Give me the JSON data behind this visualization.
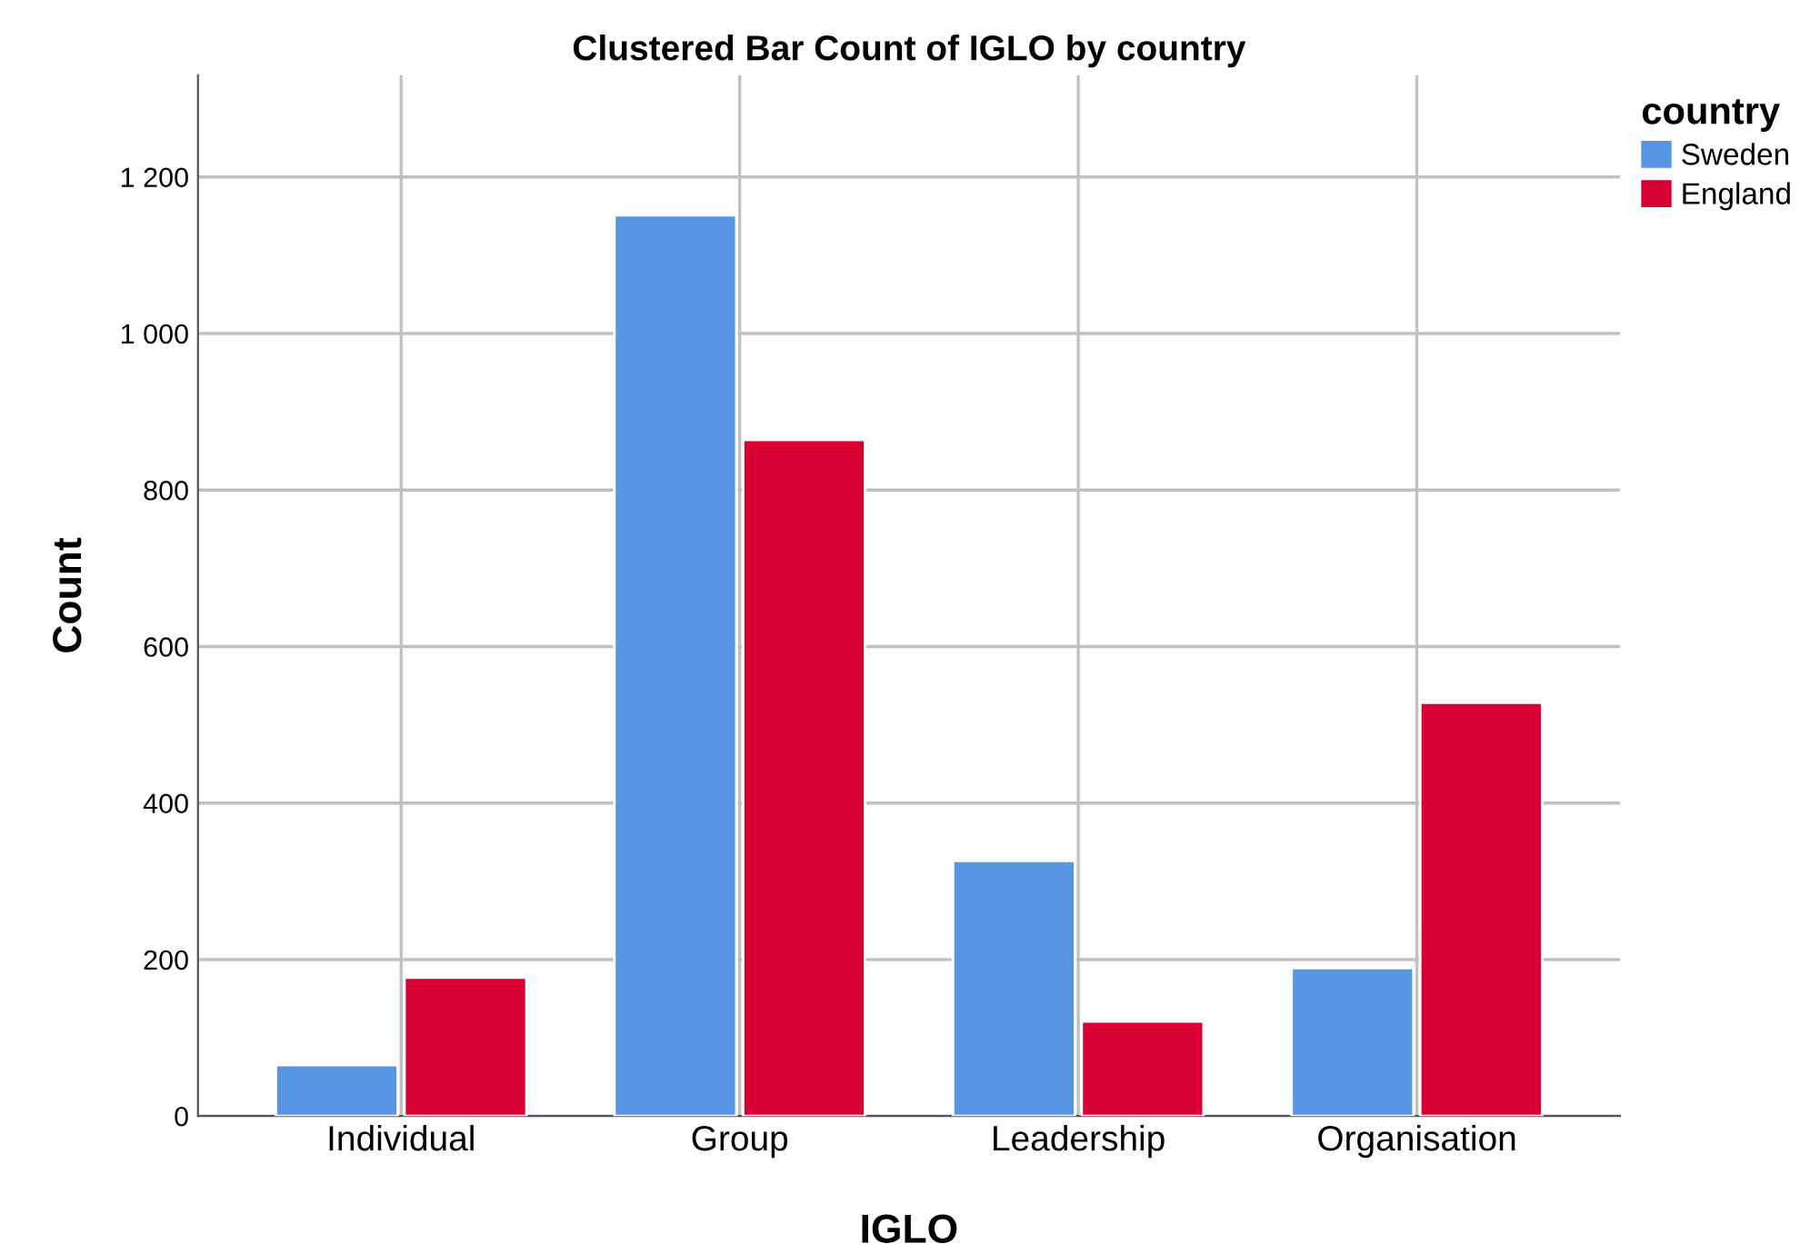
{
  "chart_data": {
    "type": "bar",
    "title": "Clustered Bar Count of IGLO by country",
    "xlabel": "IGLO",
    "ylabel": "Count",
    "legend_title": "country",
    "categories": [
      "Individual",
      "Group",
      "Leadership",
      "Organisation"
    ],
    "series": [
      {
        "name": "Sweden",
        "color": "#5896e3",
        "values": [
          65,
          1151,
          326,
          189
        ]
      },
      {
        "name": "England",
        "color": "#d60032",
        "values": [
          177,
          864,
          121,
          528
        ]
      }
    ],
    "ylim": [
      0,
      1330
    ],
    "yticks": [
      0,
      200,
      400,
      600,
      800,
      {
        "value": 1000,
        "label": "1 000"
      },
      {
        "value": 1200,
        "label": "1 200"
      }
    ],
    "grid": true,
    "legend": "top right"
  }
}
